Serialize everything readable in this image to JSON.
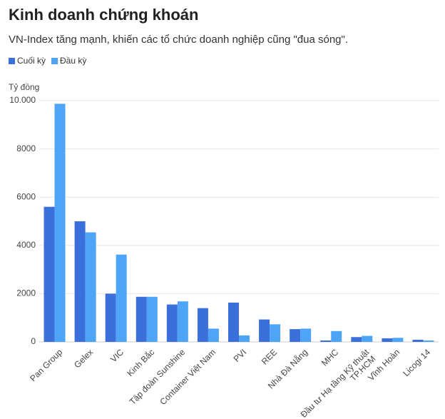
{
  "chart_data": {
    "type": "bar",
    "title": "Kinh doanh chứng khoán",
    "subtitle": "VN-Index tăng mạnh, khiến các tổ chức doanh nghiệp cũng \"đua sóng\".",
    "y_label": "Tỷ đồng",
    "categories": [
      "Pan Group",
      "Gelex",
      "VIC",
      "Kinh Bắc",
      "Tập đoàn Sunshine",
      "Container Việt Nam",
      "PVI",
      "REE",
      "Nhà Đà Nẵng",
      "MHC",
      "Đầu tư Hạ tầng Kỹ thuật TP.HCM",
      "Vĩnh Hoàn",
      "Licogi 14"
    ],
    "series": [
      {
        "name": "Cuối kỳ",
        "color": "#3b6fd9",
        "values": [
          5600,
          5000,
          2000,
          1870,
          1550,
          1400,
          1630,
          930,
          530,
          60,
          200,
          150,
          90
        ]
      },
      {
        "name": "Đầu kỳ",
        "color": "#4ea4f6",
        "values": [
          9870,
          4540,
          3620,
          1870,
          1680,
          550,
          270,
          730,
          550,
          450,
          250,
          170,
          60
        ]
      }
    ],
    "ylim": [
      0,
      10000
    ],
    "yticks": [
      0,
      2000,
      4000,
      6000,
      8000,
      {
        "value": 10000,
        "label": "10.000"
      }
    ],
    "grid": true
  }
}
